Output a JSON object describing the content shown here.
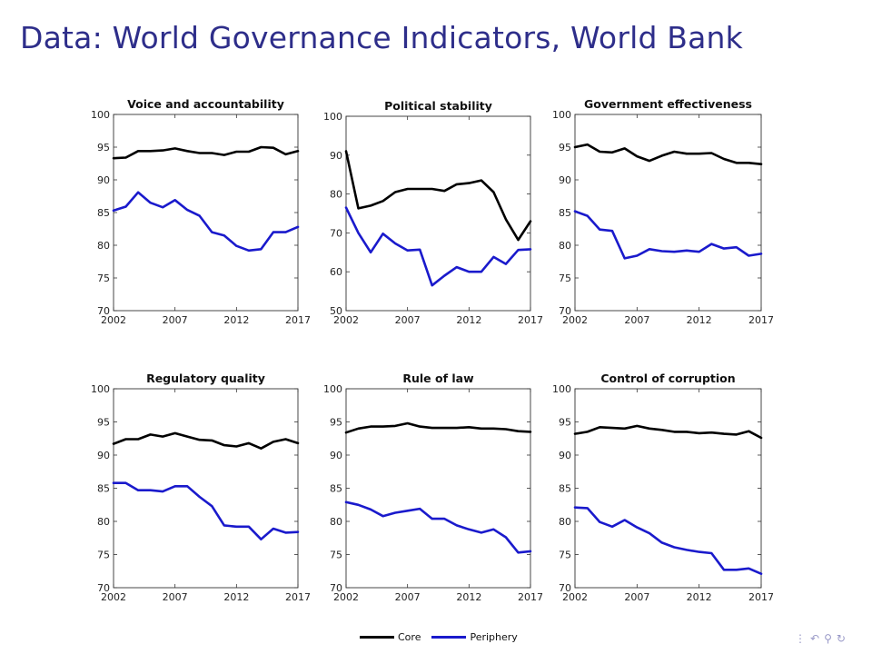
{
  "slide": {
    "title": "Data: World Governance Indicators, World Bank"
  },
  "colors": {
    "core": "#000000",
    "periphery": "#1a1acc",
    "title": "#2e2e8a"
  },
  "legend": {
    "core_label": "Core",
    "periphery_label": "Periphery",
    "placement": "bottom-center"
  },
  "nav": {
    "icons": [
      "dots-icon",
      "undo-icon",
      "search-icon",
      "refresh-icon"
    ]
  },
  "chart_data": [
    {
      "type": "line",
      "title": "Voice and accountability",
      "x": [
        2002,
        2003,
        2004,
        2005,
        2006,
        2007,
        2008,
        2009,
        2010,
        2011,
        2012,
        2013,
        2014,
        2015,
        2016,
        2017
      ],
      "xticks": [
        "2002",
        "2007",
        "2012",
        "2017"
      ],
      "ylim": [
        70,
        100
      ],
      "yticks": [
        "70",
        "75",
        "80",
        "85",
        "90",
        "95",
        "100"
      ],
      "grid": false,
      "series": [
        {
          "name": "Core",
          "values": [
            93.3,
            93.4,
            94.4,
            94.4,
            94.5,
            94.8,
            94.4,
            94.1,
            94.1,
            93.8,
            94.3,
            94.3,
            95.0,
            94.9,
            93.9,
            94.4
          ]
        },
        {
          "name": "Periphery",
          "values": [
            85.3,
            85.9,
            88.1,
            86.5,
            85.8,
            86.9,
            85.4,
            84.5,
            82.0,
            81.5,
            79.9,
            79.2,
            79.4,
            82.0,
            82.0,
            82.8
          ]
        }
      ]
    },
    {
      "type": "line",
      "title": "Political stability",
      "x": [
        2002,
        2003,
        2004,
        2005,
        2006,
        2007,
        2008,
        2009,
        2010,
        2011,
        2012,
        2013,
        2014,
        2015,
        2016,
        2017
      ],
      "xticks": [
        "2002",
        "2007",
        "2012",
        "2017"
      ],
      "ylim": [
        50,
        100
      ],
      "yticks": [
        "50",
        "60",
        "70",
        "80",
        "90",
        "100"
      ],
      "grid": false,
      "series": [
        {
          "name": "Core",
          "values": [
            91,
            76.3,
            77,
            78.2,
            80.5,
            81.3,
            81.3,
            81.3,
            80.8,
            82.5,
            82.8,
            83.5,
            80.5,
            73.5,
            68.2,
            73
          ]
        },
        {
          "name": "Periphery",
          "values": [
            76.5,
            70,
            65,
            69.8,
            67.3,
            65.5,
            65.7,
            56.5,
            59,
            61.2,
            60,
            60,
            63.8,
            62,
            65.6,
            65.8
          ]
        }
      ]
    },
    {
      "type": "line",
      "title": "Government effectiveness",
      "x": [
        2002,
        2003,
        2004,
        2005,
        2006,
        2007,
        2008,
        2009,
        2010,
        2011,
        2012,
        2013,
        2014,
        2015,
        2016,
        2017
      ],
      "xticks": [
        "2002",
        "2007",
        "2012",
        "2017"
      ],
      "ylim": [
        70,
        100
      ],
      "yticks": [
        "70",
        "75",
        "80",
        "85",
        "90",
        "95",
        "100"
      ],
      "grid": false,
      "series": [
        {
          "name": "Core",
          "values": [
            95.0,
            95.4,
            94.3,
            94.2,
            94.8,
            93.6,
            92.9,
            93.7,
            94.3,
            94.0,
            94.0,
            94.1,
            93.2,
            92.6,
            92.6,
            92.4
          ]
        },
        {
          "name": "Periphery",
          "values": [
            85.2,
            84.5,
            82.4,
            82.2,
            78.0,
            78.4,
            79.4,
            79.1,
            79.0,
            79.2,
            79.0,
            80.2,
            79.5,
            79.7,
            78.4,
            78.7
          ]
        }
      ]
    },
    {
      "type": "line",
      "title": "Regulatory quality",
      "x": [
        2002,
        2003,
        2004,
        2005,
        2006,
        2007,
        2008,
        2009,
        2010,
        2011,
        2012,
        2013,
        2014,
        2015,
        2016,
        2017
      ],
      "xticks": [
        "2002",
        "2007",
        "2012",
        "2017"
      ],
      "ylim": [
        70,
        100
      ],
      "yticks": [
        "70",
        "75",
        "80",
        "85",
        "90",
        "95",
        "100"
      ],
      "grid": false,
      "series": [
        {
          "name": "Core",
          "values": [
            91.7,
            92.4,
            92.4,
            93.1,
            92.8,
            93.3,
            92.8,
            92.3,
            92.2,
            91.5,
            91.3,
            91.8,
            91.0,
            92.0,
            92.4,
            91.8
          ]
        },
        {
          "name": "Periphery",
          "values": [
            85.8,
            85.8,
            84.7,
            84.7,
            84.5,
            85.3,
            85.3,
            83.7,
            82.3,
            79.4,
            79.2,
            79.2,
            77.3,
            78.9,
            78.3,
            78.4
          ]
        }
      ]
    },
    {
      "type": "line",
      "title": "Rule of law",
      "x": [
        2002,
        2003,
        2004,
        2005,
        2006,
        2007,
        2008,
        2009,
        2010,
        2011,
        2012,
        2013,
        2014,
        2015,
        2016,
        2017
      ],
      "xticks": [
        "2002",
        "2007",
        "2012",
        "2017"
      ],
      "ylim": [
        70,
        100
      ],
      "yticks": [
        "70",
        "75",
        "80",
        "85",
        "90",
        "95",
        "100"
      ],
      "grid": false,
      "series": [
        {
          "name": "Core",
          "values": [
            93.4,
            94.0,
            94.3,
            94.3,
            94.4,
            94.8,
            94.3,
            94.1,
            94.1,
            94.1,
            94.2,
            94.0,
            94.0,
            93.9,
            93.6,
            93.5
          ]
        },
        {
          "name": "Periphery",
          "values": [
            82.9,
            82.5,
            81.8,
            80.8,
            81.3,
            81.6,
            81.9,
            80.4,
            80.4,
            79.4,
            78.8,
            78.3,
            78.8,
            77.6,
            75.3,
            75.5
          ]
        }
      ]
    },
    {
      "type": "line",
      "title": "Control of corruption",
      "x": [
        2002,
        2003,
        2004,
        2005,
        2006,
        2007,
        2008,
        2009,
        2010,
        2011,
        2012,
        2013,
        2014,
        2015,
        2016,
        2017
      ],
      "xticks": [
        "2002",
        "2007",
        "2012",
        "2017"
      ],
      "ylim": [
        70,
        100
      ],
      "yticks": [
        "70",
        "75",
        "80",
        "85",
        "90",
        "95",
        "100"
      ],
      "grid": false,
      "series": [
        {
          "name": "Core",
          "values": [
            93.2,
            93.5,
            94.2,
            94.1,
            94.0,
            94.4,
            94.0,
            93.8,
            93.5,
            93.5,
            93.3,
            93.4,
            93.2,
            93.1,
            93.6,
            92.6
          ]
        },
        {
          "name": "Periphery",
          "values": [
            82.1,
            82.0,
            79.9,
            79.2,
            80.2,
            79.1,
            78.2,
            76.8,
            76.1,
            75.7,
            75.4,
            75.2,
            72.7,
            72.7,
            72.9,
            72.1
          ]
        }
      ]
    }
  ]
}
